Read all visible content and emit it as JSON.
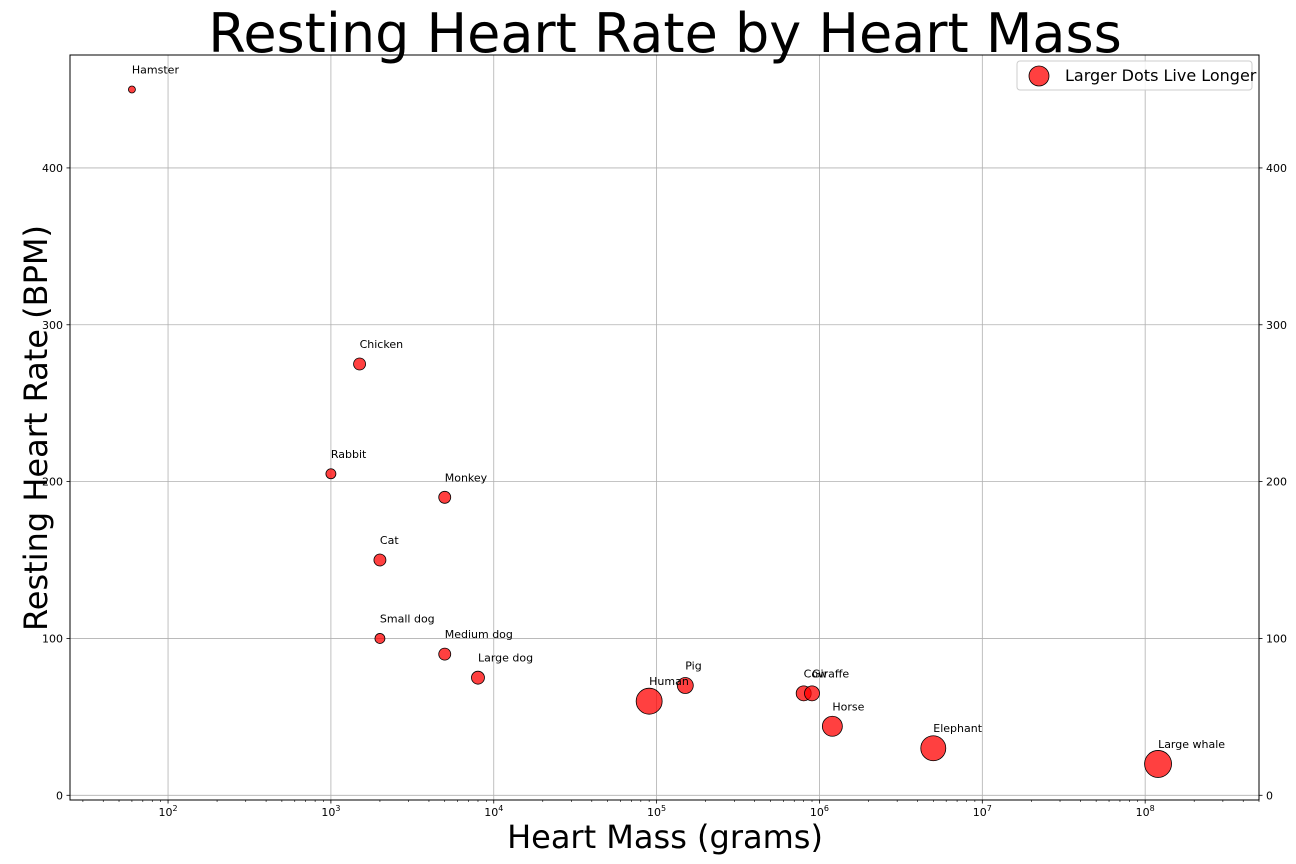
{
  "chart_data": {
    "type": "scatter",
    "title": "Resting Heart Rate by Heart Mass",
    "xlabel": "Heart Mass (grams)",
    "ylabel": "Resting Heart Rate (BPM)",
    "x_scale": "log",
    "xlim": [
      25,
      500000000
    ],
    "ylim": [
      -3,
      472
    ],
    "x_ticks": [
      {
        "value": 100,
        "base": "10",
        "exp": "2"
      },
      {
        "value": 1000,
        "base": "10",
        "exp": "3"
      },
      {
        "value": 10000,
        "base": "10",
        "exp": "4"
      },
      {
        "value": 100000,
        "base": "10",
        "exp": "5"
      },
      {
        "value": 1000000,
        "base": "10",
        "exp": "6"
      },
      {
        "value": 10000000,
        "base": "10",
        "exp": "7"
      },
      {
        "value": 100000000,
        "base": "10",
        "exp": "8"
      }
    ],
    "y_ticks": [
      "0",
      "100",
      "200",
      "300",
      "400"
    ],
    "grid": true,
    "legend": {
      "label": "Larger Dots Live Longer",
      "placement": "top-right"
    },
    "marker_color": "#ff0000",
    "marker_edge_color": "#000000",
    "points": [
      {
        "label": "Hamster",
        "x": 60,
        "y": 450,
        "r": 3.5
      },
      {
        "label": "Chicken",
        "x": 1500,
        "y": 275,
        "r": 6
      },
      {
        "label": "Rabbit",
        "x": 1000,
        "y": 205,
        "r": 5
      },
      {
        "label": "Monkey",
        "x": 5000,
        "y": 190,
        "r": 6
      },
      {
        "label": "Cat",
        "x": 2000,
        "y": 150,
        "r": 6
      },
      {
        "label": "Small dog",
        "x": 2000,
        "y": 100,
        "r": 5
      },
      {
        "label": "Medium dog",
        "x": 5000,
        "y": 90,
        "r": 6
      },
      {
        "label": "Large dog",
        "x": 8000,
        "y": 75,
        "r": 6.5
      },
      {
        "label": "Human",
        "x": 90000,
        "y": 60,
        "r": 13
      },
      {
        "label": "Pig",
        "x": 150000,
        "y": 70,
        "r": 8
      },
      {
        "label": "Cow",
        "x": 800000,
        "y": 65,
        "r": 7.5
      },
      {
        "label": "Giraffe",
        "x": 900000,
        "y": 65,
        "r": 7.5
      },
      {
        "label": "Horse",
        "x": 1200000,
        "y": 44,
        "r": 10
      },
      {
        "label": "Elephant",
        "x": 5000000,
        "y": 30,
        "r": 12.5
      },
      {
        "label": "Large whale",
        "x": 120000000,
        "y": 20,
        "r": 13.5
      }
    ]
  }
}
